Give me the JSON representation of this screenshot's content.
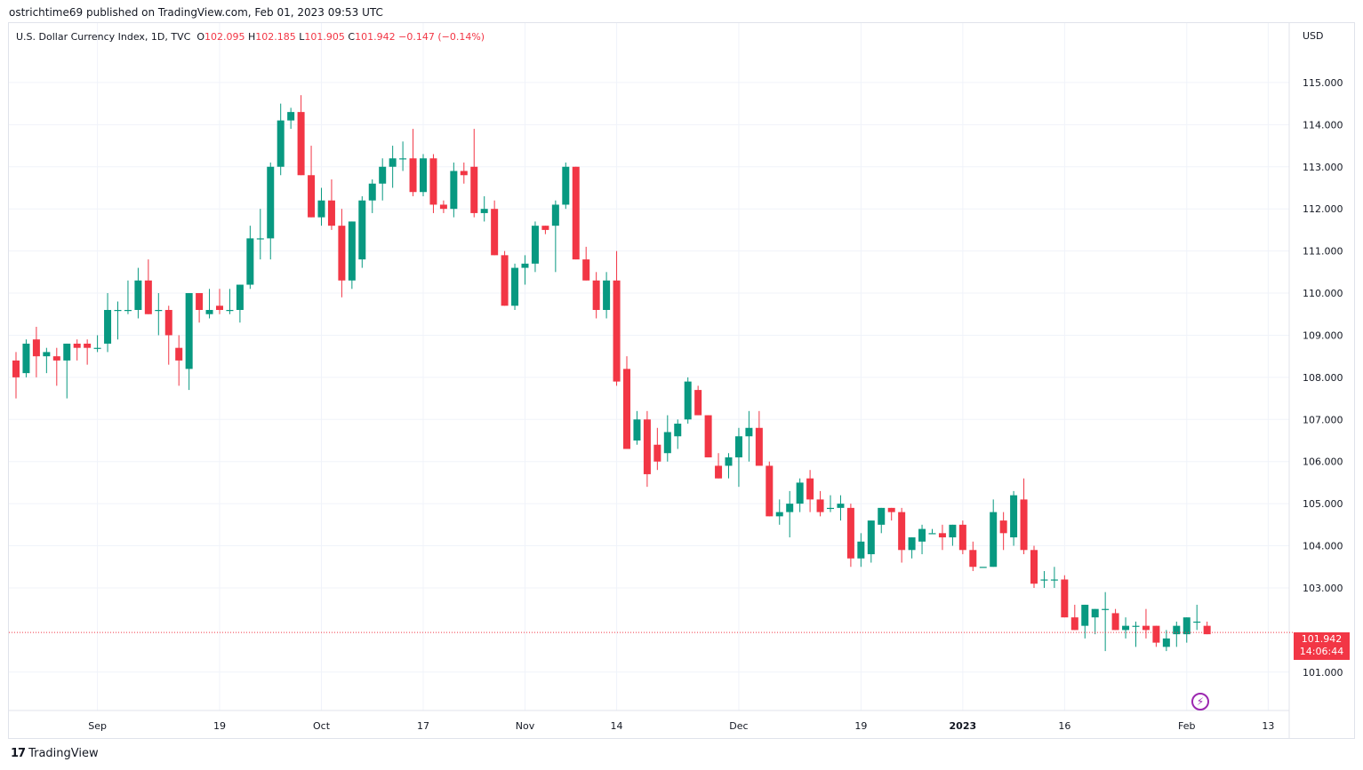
{
  "header": {
    "published_by": "ostrichtime69 published on TradingView.com, Feb 01, 2023 09:53 UTC"
  },
  "legend": {
    "symbol": "U.S. Dollar Currency Index, 1D, TVC",
    "open_label": "O",
    "open": "102.095",
    "high_label": "H",
    "high": "102.185",
    "low_label": "L",
    "low": "101.905",
    "close_label": "C",
    "close": "101.942",
    "change": "−0.147 (−0.14%)"
  },
  "currency": "USD",
  "last_price": {
    "value": "101.942",
    "countdown": "14:06:44"
  },
  "brand": {
    "name": "TradingView",
    "logo_glyph": "17"
  },
  "colors": {
    "up": "#089981",
    "down": "#f23645",
    "grid": "#f0f3fa",
    "event": "#9c27b0"
  },
  "chart_data": {
    "type": "candlestick",
    "interval": "1D",
    "ylim": [
      100.3,
      115.8
    ],
    "y_ticks": [
      "115.000",
      "114.000",
      "113.000",
      "112.000",
      "111.000",
      "110.000",
      "109.000",
      "108.000",
      "107.000",
      "106.000",
      "105.000",
      "104.000",
      "103.000",
      "101.000"
    ],
    "x_ticks": [
      {
        "label": "Sep",
        "index": 8,
        "bold": false
      },
      {
        "label": "19",
        "index": 20,
        "bold": false
      },
      {
        "label": "Oct",
        "index": 30,
        "bold": false
      },
      {
        "label": "17",
        "index": 40,
        "bold": false
      },
      {
        "label": "Nov",
        "index": 50,
        "bold": false
      },
      {
        "label": "14",
        "index": 59,
        "bold": false
      },
      {
        "label": "Dec",
        "index": 71,
        "bold": false
      },
      {
        "label": "19",
        "index": 83,
        "bold": false
      },
      {
        "label": "2023",
        "index": 93,
        "bold": true
      },
      {
        "label": "16",
        "index": 103,
        "bold": false
      },
      {
        "label": "Feb",
        "index": 115,
        "bold": false
      },
      {
        "label": "13",
        "index": 123,
        "bold": false
      }
    ],
    "last_close_line": 101.942,
    "candles": [
      [
        108.4,
        108.6,
        107.5,
        108.0
      ],
      [
        108.1,
        108.9,
        108.0,
        108.8
      ],
      [
        108.9,
        109.2,
        108.0,
        108.5
      ],
      [
        108.5,
        108.7,
        108.1,
        108.6
      ],
      [
        108.5,
        108.7,
        107.8,
        108.4
      ],
      [
        108.4,
        108.8,
        107.5,
        108.8
      ],
      [
        108.8,
        108.9,
        108.4,
        108.7
      ],
      [
        108.8,
        108.9,
        108.3,
        108.7
      ],
      [
        108.7,
        109.0,
        108.6,
        108.7
      ],
      [
        108.8,
        110.0,
        108.6,
        109.6
      ],
      [
        109.6,
        109.8,
        108.9,
        109.6
      ],
      [
        109.6,
        110.3,
        109.5,
        109.6
      ],
      [
        109.6,
        110.6,
        109.4,
        110.3
      ],
      [
        110.3,
        110.8,
        109.5,
        109.5
      ],
      [
        109.6,
        110.0,
        109.0,
        109.6
      ],
      [
        109.6,
        109.7,
        108.3,
        109.0
      ],
      [
        108.7,
        109.0,
        107.8,
        108.4
      ],
      [
        108.2,
        110.0,
        107.7,
        110.0
      ],
      [
        110.0,
        110.0,
        109.3,
        109.6
      ],
      [
        109.5,
        110.1,
        109.4,
        109.6
      ],
      [
        109.7,
        110.1,
        109.5,
        109.6
      ],
      [
        109.6,
        110.1,
        109.5,
        109.6
      ],
      [
        109.6,
        110.2,
        109.3,
        110.2
      ],
      [
        110.2,
        111.6,
        110.1,
        111.3
      ],
      [
        111.3,
        112.0,
        110.8,
        111.3
      ],
      [
        111.3,
        113.1,
        110.8,
        113.0
      ],
      [
        113.0,
        114.5,
        112.8,
        114.1
      ],
      [
        114.1,
        114.4,
        113.9,
        114.3
      ],
      [
        114.3,
        114.7,
        112.8,
        112.8
      ],
      [
        112.8,
        113.5,
        111.8,
        111.8
      ],
      [
        111.8,
        112.5,
        111.6,
        112.2
      ],
      [
        112.2,
        112.7,
        111.5,
        111.6
      ],
      [
        111.6,
        112.0,
        109.9,
        110.3
      ],
      [
        110.3,
        111.7,
        110.1,
        111.7
      ],
      [
        110.8,
        112.3,
        110.6,
        112.2
      ],
      [
        112.2,
        112.7,
        111.9,
        112.6
      ],
      [
        112.6,
        113.2,
        112.2,
        113.0
      ],
      [
        113.0,
        113.5,
        112.5,
        113.2
      ],
      [
        113.2,
        113.6,
        112.9,
        113.2
      ],
      [
        113.2,
        113.9,
        112.3,
        112.4
      ],
      [
        112.4,
        113.3,
        112.3,
        113.2
      ],
      [
        113.2,
        113.3,
        111.9,
        112.1
      ],
      [
        112.1,
        112.2,
        111.9,
        112.0
      ],
      [
        112.0,
        113.1,
        111.8,
        112.9
      ],
      [
        112.9,
        113.1,
        112.6,
        112.8
      ],
      [
        113.0,
        113.9,
        111.8,
        111.9
      ],
      [
        111.9,
        112.3,
        111.7,
        112.0
      ],
      [
        112.0,
        112.2,
        110.9,
        110.9
      ],
      [
        110.9,
        111.0,
        109.7,
        109.7
      ],
      [
        109.7,
        110.7,
        109.6,
        110.6
      ],
      [
        110.6,
        110.9,
        110.2,
        110.7
      ],
      [
        110.7,
        111.7,
        110.5,
        111.6
      ],
      [
        111.6,
        111.6,
        111.4,
        111.5
      ],
      [
        111.6,
        112.2,
        110.5,
        112.1
      ],
      [
        112.1,
        113.1,
        112.0,
        113.0
      ],
      [
        113.0,
        113.0,
        110.8,
        110.8
      ],
      [
        110.8,
        111.1,
        110.3,
        110.3
      ],
      [
        110.3,
        110.5,
        109.4,
        109.6
      ],
      [
        109.6,
        110.5,
        109.4,
        110.3
      ],
      [
        110.3,
        111.0,
        107.8,
        107.9
      ],
      [
        108.2,
        108.5,
        106.4,
        106.3
      ],
      [
        106.5,
        107.2,
        106.4,
        107.0
      ],
      [
        107.0,
        107.2,
        105.4,
        105.7
      ],
      [
        106.4,
        106.8,
        105.8,
        106.0
      ],
      [
        106.2,
        107.1,
        106.0,
        106.7
      ],
      [
        106.6,
        107.0,
        106.3,
        106.9
      ],
      [
        107.0,
        108.0,
        106.9,
        107.9
      ],
      [
        107.7,
        107.8,
        107.1,
        107.1
      ],
      [
        107.1,
        107.1,
        106.1,
        106.1
      ],
      [
        105.9,
        106.2,
        105.6,
        105.6
      ],
      [
        105.9,
        106.2,
        105.6,
        106.1
      ],
      [
        106.1,
        106.8,
        105.4,
        106.6
      ],
      [
        106.6,
        107.2,
        106.0,
        106.8
      ],
      [
        106.8,
        107.2,
        106.0,
        105.9
      ],
      [
        105.9,
        106.0,
        104.7,
        104.7
      ],
      [
        104.7,
        105.1,
        104.5,
        104.8
      ],
      [
        104.8,
        105.3,
        104.2,
        105.0
      ],
      [
        105.0,
        105.6,
        104.8,
        105.5
      ],
      [
        105.6,
        105.8,
        104.8,
        105.1
      ],
      [
        105.1,
        105.3,
        104.7,
        104.8
      ],
      [
        104.9,
        105.2,
        104.8,
        104.9
      ],
      [
        104.9,
        105.2,
        104.6,
        105.0
      ],
      [
        104.9,
        105.0,
        103.5,
        103.7
      ],
      [
        103.7,
        104.3,
        103.5,
        104.1
      ],
      [
        103.8,
        104.6,
        103.6,
        104.6
      ],
      [
        104.5,
        104.9,
        104.3,
        104.9
      ],
      [
        104.9,
        104.9,
        104.6,
        104.8
      ],
      [
        104.8,
        104.9,
        103.6,
        103.9
      ],
      [
        103.9,
        104.2,
        103.7,
        104.2
      ],
      [
        104.1,
        104.5,
        103.8,
        104.4
      ],
      [
        104.3,
        104.4,
        104.3,
        104.3
      ],
      [
        104.3,
        104.5,
        103.9,
        104.2
      ],
      [
        104.2,
        104.5,
        104.0,
        104.5
      ],
      [
        104.5,
        104.6,
        103.8,
        103.9
      ],
      [
        103.9,
        104.1,
        103.4,
        103.5
      ],
      [
        103.5,
        103.5,
        103.5,
        103.5
      ],
      [
        103.5,
        105.1,
        103.5,
        104.8
      ],
      [
        104.6,
        104.8,
        103.9,
        104.3
      ],
      [
        104.2,
        105.3,
        104.0,
        105.2
      ],
      [
        105.1,
        105.6,
        103.8,
        103.9
      ],
      [
        103.9,
        104.0,
        103.0,
        103.1
      ],
      [
        103.2,
        103.4,
        103.0,
        103.2
      ],
      [
        103.2,
        103.5,
        103.0,
        103.2
      ],
      [
        103.2,
        103.3,
        102.3,
        102.3
      ],
      [
        102.3,
        102.6,
        102.0,
        102.0
      ],
      [
        102.1,
        102.6,
        101.8,
        102.6
      ],
      [
        102.3,
        102.5,
        101.9,
        102.5
      ],
      [
        102.5,
        102.9,
        101.5,
        102.5
      ],
      [
        102.4,
        102.5,
        102.0,
        102.0
      ],
      [
        102.0,
        102.3,
        101.8,
        102.1
      ],
      [
        102.1,
        102.2,
        101.6,
        102.1
      ],
      [
        102.1,
        102.5,
        101.8,
        102.0
      ],
      [
        102.1,
        102.1,
        101.6,
        101.7
      ],
      [
        101.6,
        102.0,
        101.5,
        101.8
      ],
      [
        101.9,
        102.2,
        101.6,
        102.1
      ],
      [
        101.9,
        102.3,
        101.7,
        102.3
      ],
      [
        102.2,
        102.6,
        102.0,
        102.2
      ],
      [
        102.1,
        102.2,
        101.9,
        101.9
      ]
    ]
  }
}
